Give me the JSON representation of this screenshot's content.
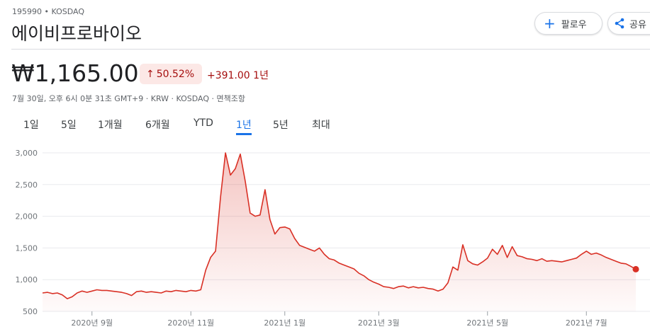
{
  "header": {
    "ticker": "195990 • KOSDAQ",
    "name": "에이비프로바이오",
    "follow": "팔로우",
    "share": "공유",
    "price": "₩1,165.00",
    "change_pct": "50.52%",
    "change_abs": "+391.00 1년",
    "info": "7월 30일, 오후 6시 0분 31초 GMT+9 · KRW · KOSDAQ · 면책조항"
  },
  "tabs": {
    "items": [
      "1일",
      "5일",
      "1개월",
      "6개월",
      "YTD",
      "1년",
      "5년",
      "최대"
    ],
    "selected": 5
  },
  "chart_data": {
    "type": "line",
    "color": "#d93025",
    "grid": true,
    "categories": [
      null,
      null,
      null,
      null,
      null,
      null,
      null,
      null,
      null,
      null,
      "2020년 9월",
      null,
      null,
      null,
      null,
      null,
      null,
      null,
      null,
      null,
      null,
      null,
      null,
      null,
      null,
      null,
      null,
      null,
      null,
      null,
      "2020년 11월",
      null,
      null,
      null,
      null,
      null,
      null,
      null,
      null,
      null,
      null,
      null,
      null,
      null,
      null,
      null,
      null,
      null,
      null,
      "2021년 1월",
      null,
      null,
      null,
      null,
      null,
      null,
      null,
      null,
      null,
      null,
      null,
      null,
      null,
      null,
      null,
      null,
      null,
      null,
      "2021년 3월",
      null,
      null,
      null,
      null,
      null,
      null,
      null,
      null,
      null,
      null,
      null,
      null,
      null,
      null,
      null,
      null,
      null,
      null,
      null,
      null,
      null,
      "2021년 5월",
      null,
      null,
      null,
      null,
      null,
      null,
      null,
      null,
      null,
      null,
      null,
      null,
      null,
      null,
      null,
      null,
      null,
      null,
      null,
      "2021년 7월",
      null,
      null,
      null,
      null,
      null,
      null,
      null,
      null,
      null,
      null
    ],
    "values": [
      790,
      800,
      780,
      790,
      760,
      700,
      730,
      790,
      820,
      800,
      820,
      840,
      830,
      830,
      820,
      810,
      800,
      780,
      750,
      810,
      820,
      800,
      810,
      800,
      790,
      820,
      810,
      830,
      820,
      810,
      830,
      820,
      840,
      1150,
      1350,
      1450,
      2300,
      3000,
      2650,
      2750,
      2980,
      2550,
      2050,
      2000,
      2020,
      2420,
      1950,
      1720,
      1820,
      1830,
      1800,
      1650,
      1540,
      1510,
      1480,
      1450,
      1500,
      1400,
      1330,
      1310,
      1260,
      1230,
      1200,
      1170,
      1100,
      1060,
      1000,
      960,
      930,
      890,
      880,
      860,
      890,
      900,
      870,
      890,
      870,
      880,
      860,
      850,
      820,
      850,
      950,
      1200,
      1150,
      1550,
      1300,
      1250,
      1230,
      1280,
      1340,
      1480,
      1400,
      1540,
      1350,
      1520,
      1380,
      1360,
      1330,
      1320,
      1300,
      1330,
      1290,
      1300,
      1290,
      1280,
      1300,
      1320,
      1340,
      1400,
      1450,
      1400,
      1420,
      1390,
      1350,
      1320,
      1290,
      1260,
      1250,
      1210,
      1165
    ],
    "ylim": [
      500,
      3000
    ],
    "yticks": [
      {
        "value": 3000,
        "label": "3,000"
      },
      {
        "value": 2500,
        "label": "2,500"
      },
      {
        "value": 2000,
        "label": "2,000"
      },
      {
        "value": 1500,
        "label": "1,500"
      },
      {
        "value": 1000,
        "label": "1,000"
      },
      500
    ]
  }
}
